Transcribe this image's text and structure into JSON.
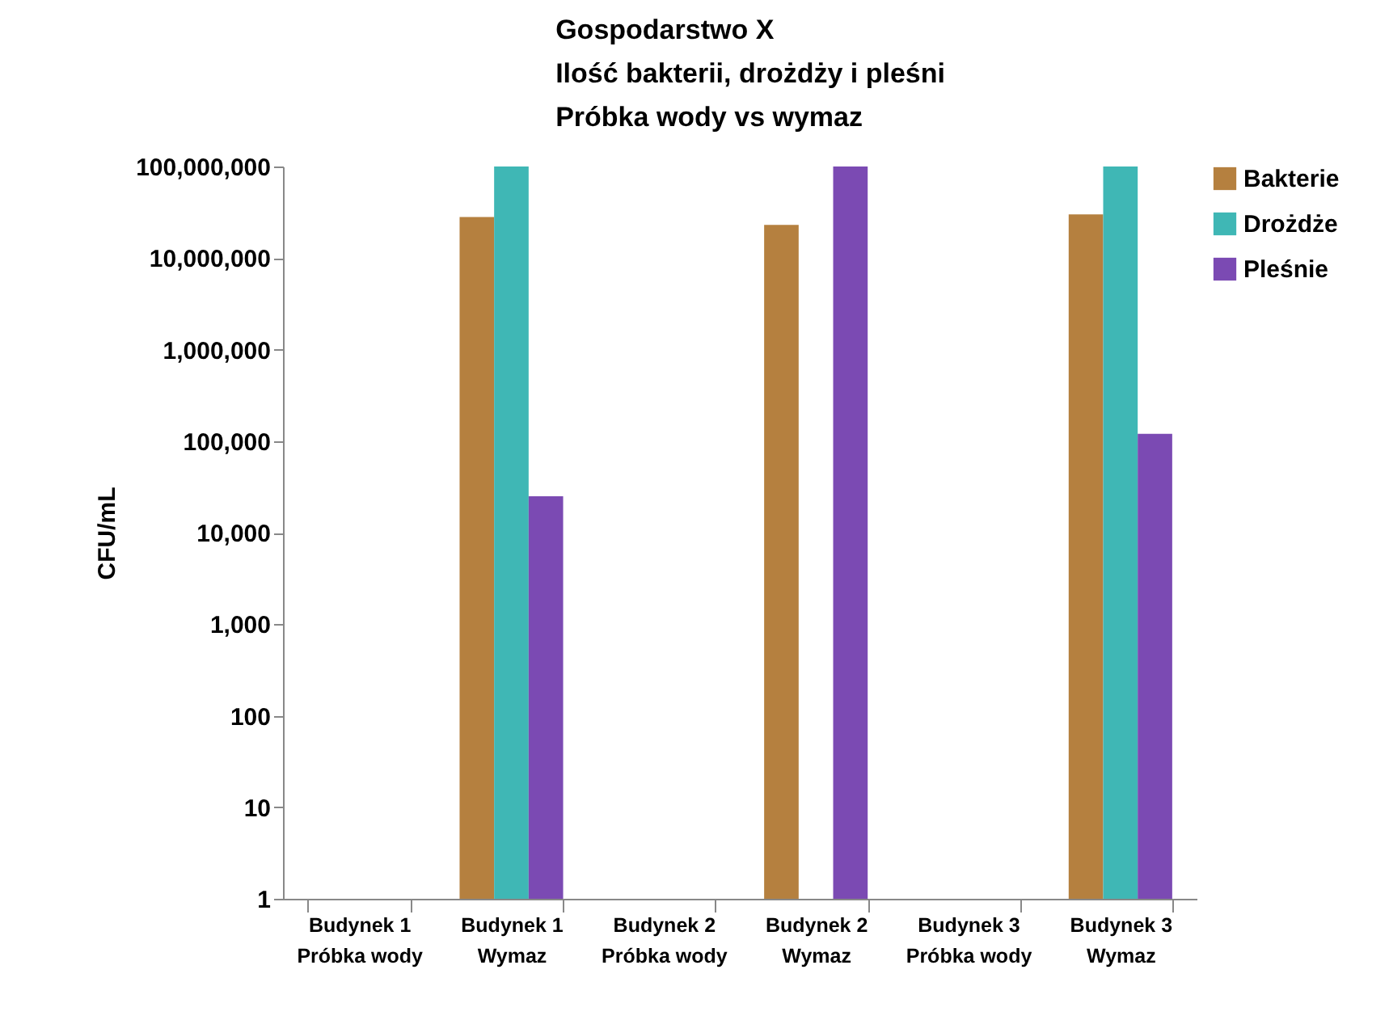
{
  "chart_data": {
    "type": "bar",
    "title": "Gospodarstwo X\nIlość bakterii, drożdży i pleśni\nPróbka wody vs wymaz",
    "ylabel": "CFU/mL",
    "categories": [
      "Budynek 1\nPróbka wody",
      "Budynek 1\nWymaz",
      "Budynek 2\nPróbka wody",
      "Budynek 2\nWymaz",
      "Budynek 3\nPróbka wody",
      "Budynek 3\nWymaz"
    ],
    "series": [
      {
        "name": "Bakterie",
        "color": "#b5803f",
        "values": [
          null,
          28000000,
          null,
          23000000,
          null,
          30000000
        ]
      },
      {
        "name": "Drożdże",
        "color": "#3fb7b5",
        "values": [
          null,
          100000000,
          null,
          null,
          null,
          100000000
        ]
      },
      {
        "name": "Pleśnie",
        "color": "#7b4ab3",
        "values": [
          null,
          25000,
          null,
          100000000,
          null,
          120000
        ]
      }
    ],
    "log": true,
    "ylim": [
      1,
      100000000
    ],
    "yticks": [
      1,
      10,
      100,
      {
        "value": 1000,
        "label": "1,000"
      },
      {
        "value": 10000,
        "label": "10,000"
      },
      {
        "value": 100000,
        "label": "100,000"
      },
      {
        "value": 1000000,
        "label": "1,000,000"
      },
      {
        "value": 10000000,
        "label": "10,000,000"
      },
      {
        "value": 100000000,
        "label": "100,000,000"
      }
    ],
    "grid": false,
    "legend": "right"
  }
}
